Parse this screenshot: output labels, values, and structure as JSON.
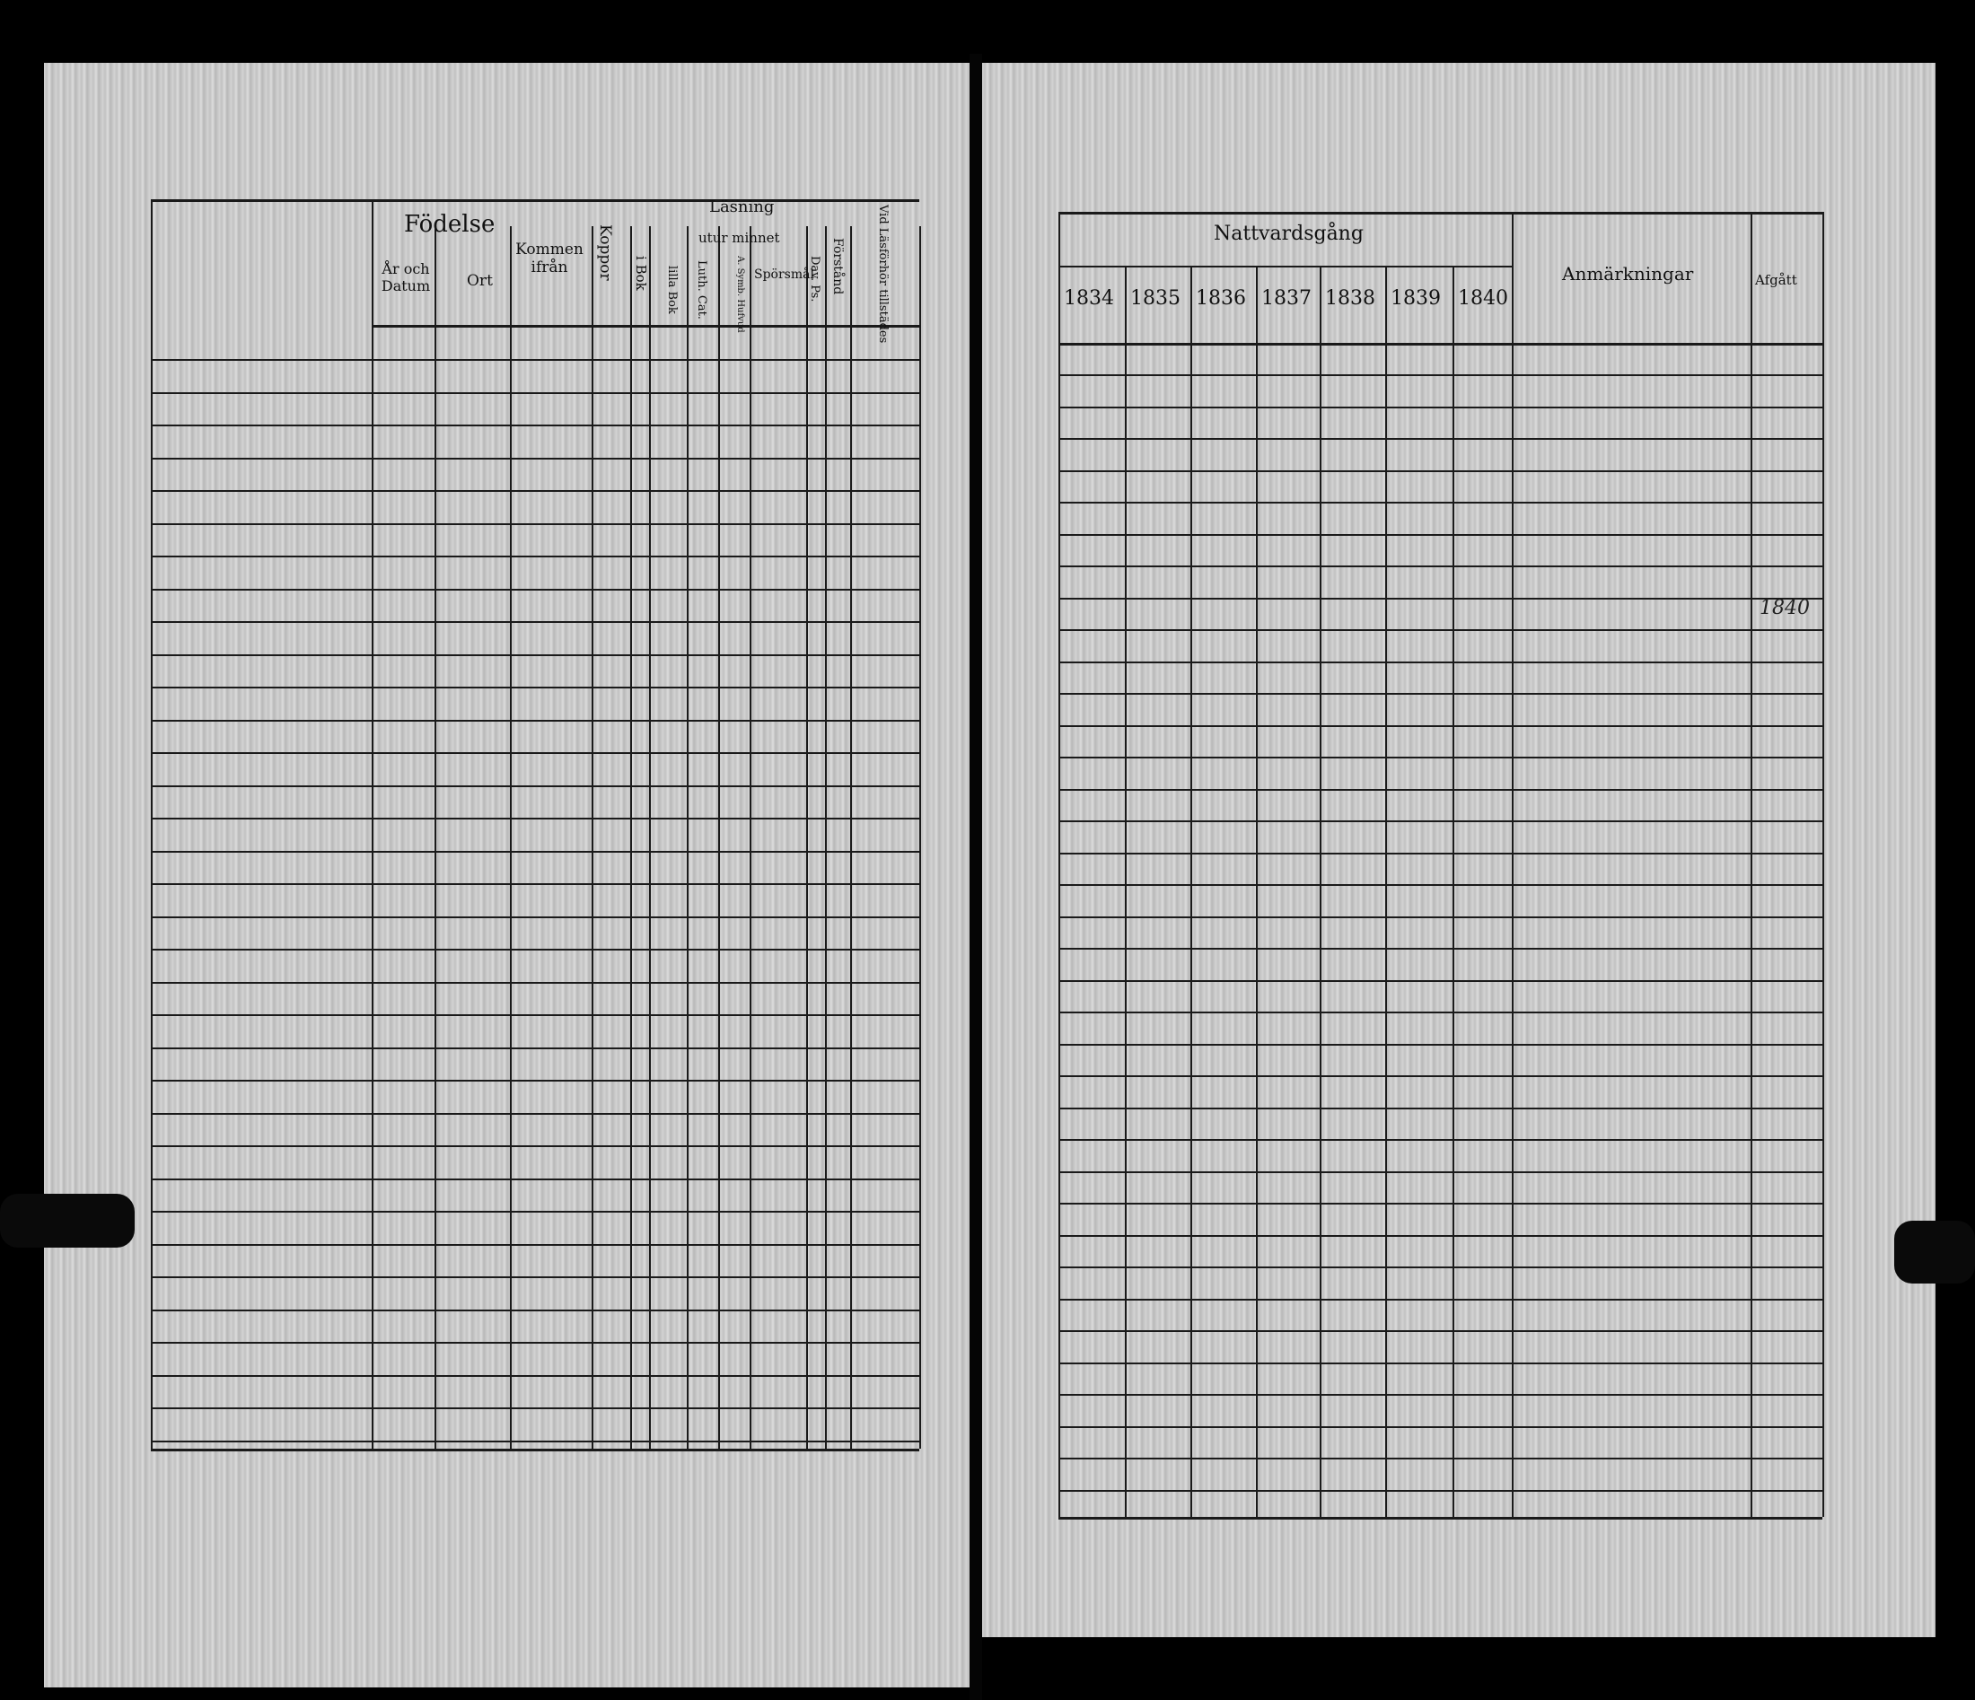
{
  "left_page": {
    "headers": {
      "fodelse": "Födelse",
      "ar_och_datum": "År och Datum",
      "ort": "Ort",
      "kommen_ifran": "Kommen ifrån",
      "koppor": "Koppor",
      "lasning": "Läsning",
      "i_bok": "i Bok",
      "utur_minnet": "utur minnet",
      "lilla_bok": "lilla Bok",
      "luth_cat": "Luth. Cat.",
      "a_symb_hufvud": "A. Symb. Hufvud",
      "sporsmal": "Spörsmål",
      "dav_ps": "Dav. Ps.",
      "forstand": "Förstånd",
      "vid_lasforhor": "Vid Läsförhör tillstädes"
    }
  },
  "right_page": {
    "headers": {
      "nattvardsgang": "Nattvardsgång",
      "years": [
        "1834",
        "1835",
        "1836",
        "1837",
        "1838",
        "1839",
        "1840"
      ],
      "anmarkningar": "Anmärkningar",
      "afgatt": "Afgått"
    },
    "afgatt_note": "1840"
  }
}
